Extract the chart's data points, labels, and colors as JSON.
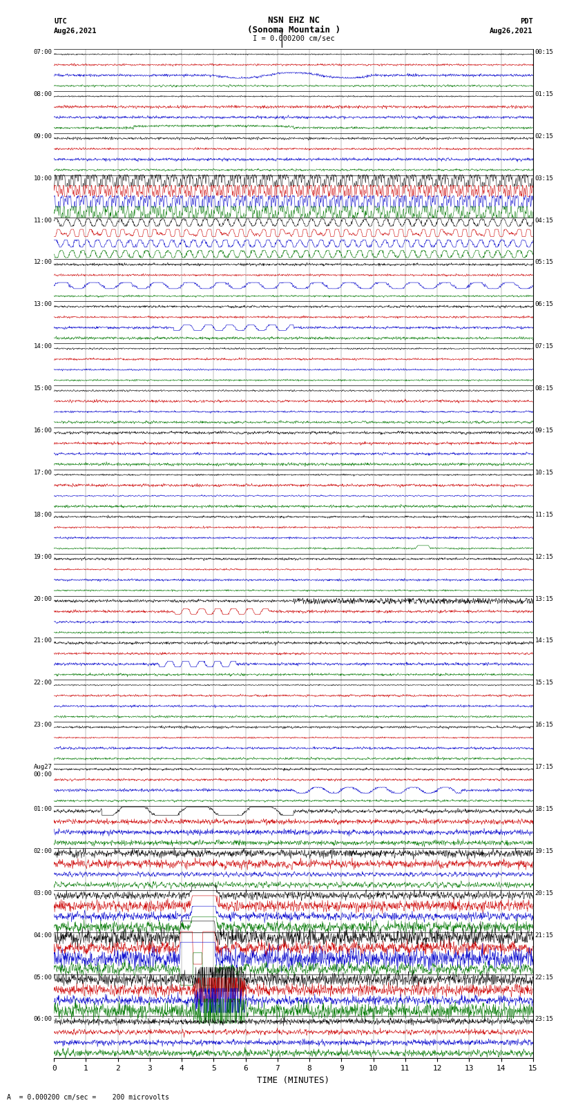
{
  "title_line1": "NSN EHZ NC",
  "title_line2": "(Sonoma Mountain )",
  "scale_text": "I = 0.000200 cm/sec",
  "left_header": "UTC",
  "left_date": "Aug26,2021",
  "right_header": "PDT",
  "right_date": "Aug26,2021",
  "bottom_label": "TIME (MINUTES)",
  "bottom_note": "A  = 0.000200 cm/sec =    200 microvolts",
  "xmin": 0,
  "xmax": 15,
  "xticks": [
    0,
    1,
    2,
    3,
    4,
    5,
    6,
    7,
    8,
    9,
    10,
    11,
    12,
    13,
    14,
    15
  ],
  "background_color": "#ffffff",
  "trace_colors": [
    "#000000",
    "#cc0000",
    "#0000cc",
    "#007700"
  ],
  "utc_labels": [
    "07:00",
    "08:00",
    "09:00",
    "10:00",
    "11:00",
    "12:00",
    "13:00",
    "14:00",
    "15:00",
    "16:00",
    "17:00",
    "18:00",
    "19:00",
    "20:00",
    "21:00",
    "22:00",
    "23:00",
    "Aug27\n00:00",
    "01:00",
    "02:00",
    "03:00",
    "04:00",
    "05:00",
    "06:00"
  ],
  "pdt_labels": [
    "00:15",
    "01:15",
    "02:15",
    "03:15",
    "04:15",
    "05:15",
    "06:15",
    "07:15",
    "08:15",
    "09:15",
    "10:15",
    "11:15",
    "12:15",
    "13:15",
    "14:15",
    "15:15",
    "16:15",
    "17:15",
    "18:15",
    "19:15",
    "20:15",
    "21:15",
    "22:15",
    "23:15"
  ],
  "num_hours": 24,
  "traces_per_hour": 4,
  "figwidth": 8.5,
  "figheight": 16.13,
  "dpi": 100
}
